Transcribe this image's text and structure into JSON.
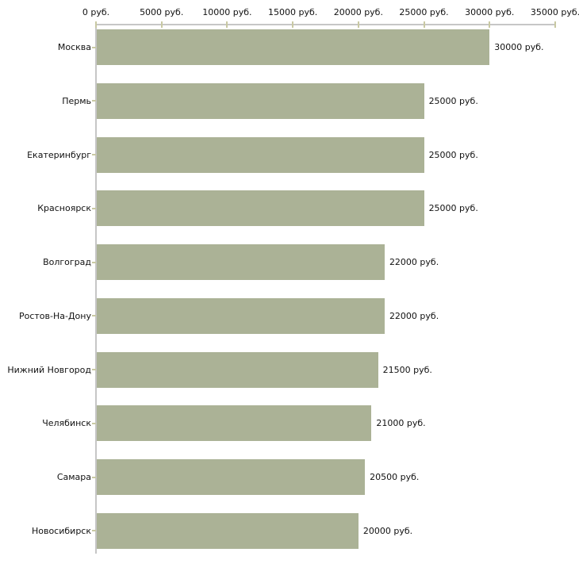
{
  "chart_data": {
    "type": "bar",
    "orientation": "horizontal",
    "title": "",
    "categories": [
      "Москва",
      "Пермь",
      "Екатеринбург",
      "Красноярск",
      "Волгоград",
      "Ростов-На-Дону",
      "Нижний Новгород",
      "Челябинск",
      "Самара",
      "Новосибирск"
    ],
    "values": [
      30000,
      25000,
      25000,
      25000,
      22000,
      22000,
      21500,
      21000,
      20500,
      20000
    ],
    "value_labels": [
      "30000 руб.",
      "25000 руб.",
      "25000 руб.",
      "25000 руб.",
      "22000 руб.",
      "22000 руб.",
      "21500 руб.",
      "21000 руб.",
      "20500 руб.",
      "20000 руб."
    ],
    "x_axis": {
      "min": 0,
      "max": 35000,
      "tick_step": 5000,
      "tick_values": [
        0,
        5000,
        10000,
        15000,
        20000,
        25000,
        30000,
        35000
      ],
      "tick_labels": [
        "0 руб.",
        "5000 руб.",
        "10000 руб.",
        "15000 руб.",
        "20000 руб.",
        "25000 руб.",
        "30000 руб.",
        "35000 руб."
      ]
    },
    "unit": "руб.",
    "grid": false,
    "legend": false,
    "colors": {
      "bar": "#abb296",
      "axis_line": "#c6c6c6",
      "tick_mark": "#c9c9a3",
      "text": "#111111"
    }
  }
}
